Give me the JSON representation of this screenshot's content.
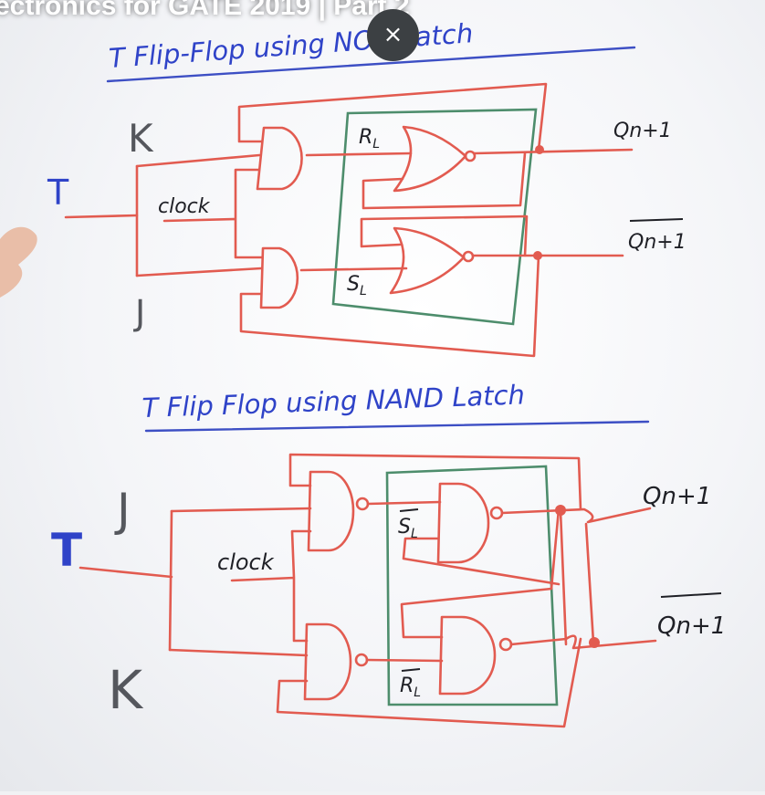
{
  "video": {
    "title": "ectronics for GATE 2019 | Part 2",
    "close_symbol": "×",
    "close_icon": "close-icon"
  },
  "nor_diagram": {
    "title": "T Flip-Flop using NOR Latch",
    "t_input": "T",
    "k_input": "K",
    "j_input": "J",
    "clock_label": "clock",
    "reset_label": "R",
    "reset_sub": "L",
    "set_label": "S",
    "set_sub": "L",
    "q_output": "Qn+1",
    "q_bar_output": "Qn+1"
  },
  "nand_diagram": {
    "title": "T Flip Flop using NAND Latch",
    "t_input": "T",
    "j_input": "J",
    "k_input": "K",
    "clock_label": "clock",
    "set_label": "S",
    "set_sub": "L",
    "reset_label": "R",
    "reset_sub": "L",
    "q_output": "Qn+1",
    "q_bar_output": "Qn+1"
  },
  "colors": {
    "wire": "#e25b50",
    "latch_box": "#4d8d6c",
    "title_ink": "#2f43c8",
    "label_ink": "#1f2026"
  }
}
